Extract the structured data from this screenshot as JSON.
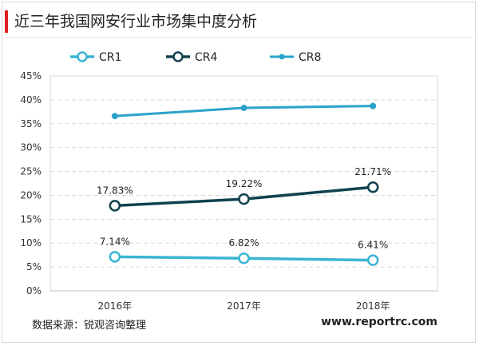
{
  "page": {
    "title": "近三年我国网安行业市场集中度分析",
    "source": "数据来源：锐观咨询整理",
    "watermark": "www.reportrc.com"
  },
  "chart_data": {
    "type": "line",
    "title": "近三年我国网安行业市场集中度分析",
    "categories": [
      "2016年",
      "2017年",
      "2018年"
    ],
    "ylim": [
      0,
      45
    ],
    "y_ticks": [
      "0%",
      "5%",
      "10%",
      "15%",
      "20%",
      "25%",
      "30%",
      "35%",
      "40%",
      "45%"
    ],
    "y_unit": "%",
    "grid": true,
    "legend_position": "top",
    "series": [
      {
        "name": "CR1",
        "values": [
          7.14,
          6.82,
          6.41
        ],
        "labels": [
          "7.14%",
          "6.82%",
          "6.41%"
        ],
        "color": "#3ab5d4",
        "marker": "hollow-circle"
      },
      {
        "name": "CR4",
        "values": [
          17.83,
          19.22,
          21.71
        ],
        "labels": [
          "17.83%",
          "19.22%",
          "21.71%"
        ],
        "color": "#11424f",
        "marker": "hollow-circle"
      },
      {
        "name": "CR8",
        "values": [
          36.6,
          38.3,
          38.7
        ],
        "labels": [],
        "color": "#2aa3cb",
        "marker": "small-dot"
      }
    ]
  }
}
